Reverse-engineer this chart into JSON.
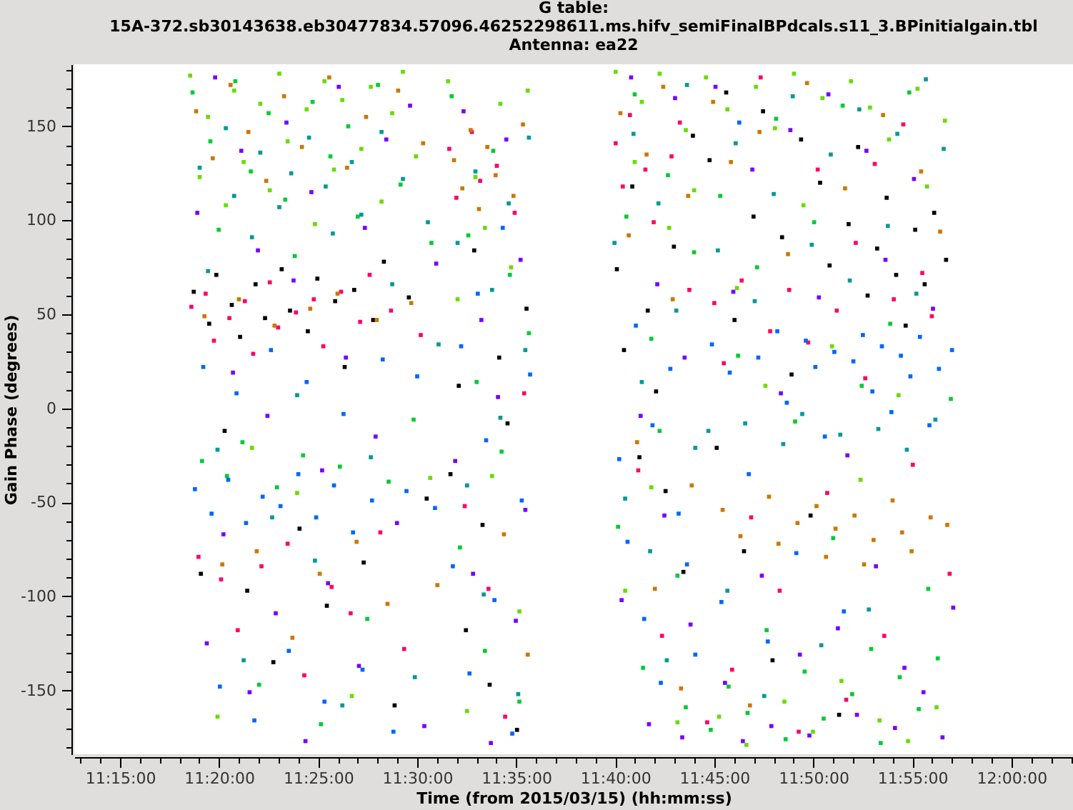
{
  "chart_data": {
    "type": "scatter",
    "title": "G table:\n15A-372.sb30143638.eb30477834.57096.46252298611.ms.hifv_semiFinalBPdcals.s11_3.BPinitialgain.tbl\nAntenna: ea22",
    "xlabel": "Time (from 2015/03/15) (hh:mm:ss)",
    "ylabel": "Gain Phase (degrees)",
    "xlim": [
      11.2115,
      12.0518
    ],
    "ylim": [
      -184,
      183
    ],
    "xticks": [
      {
        "value": 11.216667,
        "label": null
      },
      {
        "value": 11.233333,
        "label": null
      },
      {
        "value": 11.25,
        "label": "11:15:00"
      },
      {
        "value": 11.266667,
        "label": null
      },
      {
        "value": 11.283333,
        "label": null
      },
      {
        "value": 11.3,
        "label": null
      },
      {
        "value": 11.316667,
        "label": null
      },
      {
        "value": 11.333333,
        "label": "11:20:00"
      },
      {
        "value": 11.35,
        "label": null
      },
      {
        "value": 11.366667,
        "label": null
      },
      {
        "value": 11.383333,
        "label": null
      },
      {
        "value": 11.4,
        "label": null
      },
      {
        "value": 11.416667,
        "label": "11:25:00"
      },
      {
        "value": 11.433333,
        "label": null
      },
      {
        "value": 11.45,
        "label": null
      },
      {
        "value": 11.466667,
        "label": null
      },
      {
        "value": 11.483333,
        "label": null
      },
      {
        "value": 11.5,
        "label": "11:30:00"
      },
      {
        "value": 11.516667,
        "label": null
      },
      {
        "value": 11.533333,
        "label": null
      },
      {
        "value": 11.55,
        "label": null
      },
      {
        "value": 11.566667,
        "label": null
      },
      {
        "value": 11.583333,
        "label": "11:35:00"
      },
      {
        "value": 11.6,
        "label": null
      },
      {
        "value": 11.616667,
        "label": null
      },
      {
        "value": 11.633333,
        "label": null
      },
      {
        "value": 11.65,
        "label": null
      },
      {
        "value": 11.666667,
        "label": "11:40:00"
      },
      {
        "value": 11.683333,
        "label": null
      },
      {
        "value": 11.7,
        "label": null
      },
      {
        "value": 11.716667,
        "label": null
      },
      {
        "value": 11.733333,
        "label": null
      },
      {
        "value": 11.75,
        "label": "11:45:00"
      },
      {
        "value": 11.766667,
        "label": null
      },
      {
        "value": 11.783333,
        "label": null
      },
      {
        "value": 11.8,
        "label": null
      },
      {
        "value": 11.816667,
        "label": null
      },
      {
        "value": 11.833333,
        "label": "11:50:00"
      },
      {
        "value": 11.85,
        "label": null
      },
      {
        "value": 11.866667,
        "label": null
      },
      {
        "value": 11.883333,
        "label": null
      },
      {
        "value": 11.9,
        "label": null
      },
      {
        "value": 11.916667,
        "label": "11:55:00"
      },
      {
        "value": 11.933333,
        "label": null
      },
      {
        "value": 11.95,
        "label": null
      },
      {
        "value": 11.966667,
        "label": null
      },
      {
        "value": 11.983333,
        "label": null
      },
      {
        "value": 12,
        "label": "12:00:00"
      },
      {
        "value": 12.016667,
        "label": null
      },
      {
        "value": 12.033333,
        "label": null
      },
      {
        "value": 12.05,
        "label": null
      }
    ],
    "yticks": [
      {
        "value": -180,
        "label": null
      },
      {
        "value": -170,
        "label": null
      },
      {
        "value": -160,
        "label": null
      },
      -150,
      {
        "value": -140,
        "label": null
      },
      {
        "value": -130,
        "label": null
      },
      {
        "value": -120,
        "label": null
      },
      {
        "value": -110,
        "label": null
      },
      -100,
      {
        "value": -90,
        "label": null
      },
      {
        "value": -80,
        "label": null
      },
      {
        "value": -70,
        "label": null
      },
      {
        "value": -60,
        "label": null
      },
      -50,
      {
        "value": -40,
        "label": null
      },
      {
        "value": -30,
        "label": null
      },
      {
        "value": -20,
        "label": null
      },
      {
        "value": -10,
        "label": null
      },
      0,
      {
        "value": 10,
        "label": null
      },
      {
        "value": 20,
        "label": null
      },
      {
        "value": 30,
        "label": null
      },
      {
        "value": 40,
        "label": null
      },
      50,
      {
        "value": 60,
        "label": null
      },
      {
        "value": 70,
        "label": null
      },
      {
        "value": 80,
        "label": null
      },
      {
        "value": 90,
        "label": null
      },
      100,
      {
        "value": 110,
        "label": null
      },
      {
        "value": 120,
        "label": null
      },
      {
        "value": 130,
        "label": null
      },
      {
        "value": 140,
        "label": null
      },
      150,
      {
        "value": 160,
        "label": null
      },
      {
        "value": 170,
        "label": null
      },
      {
        "value": 180,
        "label": null
      }
    ],
    "marker": "square",
    "series": [
      {
        "color": "#000000",
        "x": [
          11.312,
          11.318,
          11.325,
          11.331,
          11.338,
          11.344,
          11.351,
          11.357,
          11.364,
          11.372,
          11.379,
          11.386,
          11.393,
          11.401,
          11.408,
          11.416,
          11.424,
          11.431,
          11.439,
          11.447,
          11.455,
          11.463,
          11.472,
          11.481,
          11.493,
          11.508,
          11.528,
          11.535,
          11.541,
          11.548,
          11.555,
          11.561,
          11.569,
          11.576,
          11.584,
          11.592,
          11.668,
          11.674,
          11.681,
          11.687,
          11.694,
          11.701,
          11.709,
          11.716,
          11.724,
          11.732,
          11.746,
          11.752,
          11.76,
          11.767,
          11.775,
          11.783,
          11.791,
          11.799,
          11.807,
          11.815,
          11.823,
          11.831,
          11.839,
          11.847,
          11.855,
          11.863,
          11.871,
          11.879,
          11.887,
          11.895,
          11.903,
          11.911,
          11.919,
          11.927,
          11.935,
          11.945
        ],
        "values": [
          62,
          -88,
          45,
          71,
          -12,
          55,
          38,
          -97,
          66,
          48,
          -135,
          74,
          52,
          -64,
          41,
          69,
          -105,
          57,
          22,
          63,
          -82,
          47,
          78,
          -158,
          59,
          -48,
          -35,
          12,
          -118,
          84,
          -62,
          -147,
          27,
          -8,
          -171,
          53,
          74,
          31,
          118,
          -26,
          52,
          9,
          -44,
          86,
          -87,
          145,
          132,
          -21,
          168,
          47,
          -76,
          102,
          158,
          -134,
          91,
          18,
          143,
          -57,
          120,
          76,
          -163,
          98,
          139,
          60,
          85,
          112,
          71,
          44,
          95,
          66,
          104,
          79
        ]
      },
      {
        "color": "#ff0066",
        "x": [
          11.31,
          11.316,
          11.322,
          11.329,
          11.335,
          11.342,
          11.349,
          11.355,
          11.362,
          11.369,
          11.376,
          11.383,
          11.391,
          11.398,
          11.405,
          11.413,
          11.421,
          11.428,
          11.436,
          11.444,
          11.452,
          11.46,
          11.469,
          11.478,
          11.489,
          11.503,
          11.527,
          11.533,
          11.54,
          11.546,
          11.553,
          11.56,
          11.567,
          11.574,
          11.582,
          11.59,
          11.667,
          11.673,
          11.679,
          11.686,
          11.692,
          11.699,
          11.706,
          11.714,
          11.721,
          11.729,
          11.744,
          11.75,
          11.758,
          11.765,
          11.773,
          11.781,
          11.789,
          11.797,
          11.805,
          11.813,
          11.821,
          11.829,
          11.837,
          11.845,
          11.853,
          11.861,
          11.869,
          11.877,
          11.885,
          11.893,
          11.901,
          11.909,
          11.917,
          11.925,
          11.933,
          11.948
        ],
        "values": [
          54,
          -79,
          61,
          36,
          -91,
          48,
          -118,
          57,
          29,
          -84,
          67,
          43,
          -72,
          51,
          -142,
          58,
          33,
          -95,
          62,
          -109,
          46,
          71,
          -66,
          52,
          -128,
          39,
          138,
          112,
          -52,
          147,
          121,
          -96,
          129,
          -164,
          104,
          8,
          141,
          118,
          156,
          -33,
          127,
          99,
          -121,
          134,
          152,
          63,
          -167,
          56,
          24,
          -139,
          68,
          -58,
          176,
          41,
          -97,
          63,
          -172,
          35,
          127,
          -45,
          52,
          -155,
          88,
          16,
          130,
          -121,
          58,
          151,
          -30,
          72,
          49,
          -88
        ]
      },
      {
        "color": "#00cc33",
        "x": [
          11.311,
          11.319,
          11.326,
          11.333,
          11.34,
          11.347,
          11.353,
          11.36,
          11.367,
          11.375,
          11.382,
          11.389,
          11.397,
          11.404,
          11.412,
          11.419,
          11.427,
          11.435,
          11.442,
          11.45,
          11.458,
          11.467,
          11.476,
          11.486,
          11.497,
          11.512,
          11.529,
          11.536,
          11.543,
          11.55,
          11.557,
          11.564,
          11.571,
          11.578,
          11.586,
          11.594,
          11.669,
          11.676,
          11.683,
          11.69,
          11.697,
          11.704,
          11.711,
          11.719,
          11.726,
          11.733,
          11.747,
          11.755,
          11.762,
          11.77,
          11.778,
          11.786,
          11.794,
          11.802,
          11.81,
          11.818,
          11.826,
          11.834,
          11.842,
          11.85,
          11.858,
          11.866,
          11.874,
          11.882,
          11.89,
          11.898,
          11.906,
          11.914,
          11.922,
          11.93,
          11.938,
          11.949
        ],
        "values": [
          168,
          -28,
          142,
          95,
          -36,
          174,
          -18,
          126,
          -147,
          157,
          -42,
          111,
          81,
          -25,
          163,
          -168,
          134,
          -31,
          150,
          102,
          -112,
          172,
          -39,
          119,
          -6,
          88,
          166,
          -74,
          92,
          14,
          -129,
          137,
          -23,
          71,
          -156,
          40,
          -63,
          102,
          167,
          -138,
          37,
          -12,
          124,
          -89,
          -159,
          83,
          -171,
          113,
          -148,
          28,
          -162,
          75,
          -118,
          154,
          -176,
          -7,
          -140,
          99,
          -165,
          -69,
          161,
          -152,
          12,
          -128,
          -178,
          45,
          -143,
          168,
          -160,
          -96,
          -133,
          5
        ]
      },
      {
        "color": "#0066ff",
        "x": [
          11.313,
          11.32,
          11.327,
          11.334,
          11.341,
          11.348,
          11.356,
          11.363,
          11.37,
          11.377,
          11.385,
          11.392,
          11.4,
          11.407,
          11.415,
          11.422,
          11.43,
          11.438,
          11.446,
          11.454,
          11.462,
          11.471,
          11.48,
          11.491,
          11.5,
          11.515,
          11.53,
          11.537,
          11.544,
          11.551,
          11.558,
          11.565,
          11.572,
          11.58,
          11.588,
          11.595,
          11.67,
          11.677,
          11.684,
          11.691,
          11.698,
          11.705,
          11.713,
          11.72,
          11.727,
          11.734,
          11.748,
          11.756,
          11.763,
          11.771,
          11.779,
          11.787,
          11.795,
          11.803,
          11.811,
          11.819,
          11.827,
          11.835,
          11.843,
          11.851,
          11.859,
          11.867,
          11.875,
          11.883,
          11.891,
          11.899,
          11.907,
          11.915,
          11.923,
          11.931,
          11.939,
          11.95
        ],
        "values": [
          -43,
          22,
          -56,
          -148,
          -38,
          8,
          -61,
          -166,
          -47,
          31,
          -52,
          -129,
          -35,
          14,
          -58,
          -156,
          -41,
          -3,
          -66,
          -139,
          -49,
          26,
          -172,
          -44,
          17,
          -53,
          -84,
          33,
          -141,
          61,
          -17,
          -102,
          96,
          -173,
          -49,
          18,
          -27,
          -71,
          44,
          -112,
          -9,
          -146,
          21,
          -56,
          -83,
          -131,
          34,
          -103,
          19,
          152,
          -35,
          27,
          -124,
          41,
          3,
          -77,
          36,
          22,
          -15,
          30,
          -108,
          25,
          39,
          9,
          33,
          -2,
          28,
          17,
          38,
          -9,
          21,
          31
        ]
      },
      {
        "color": "#cc7700",
        "x": [
          11.314,
          11.321,
          11.328,
          11.336,
          11.343,
          11.35,
          11.358,
          11.365,
          11.373,
          11.38,
          11.388,
          11.395,
          11.403,
          11.41,
          11.418,
          11.426,
          11.433,
          11.441,
          11.449,
          11.457,
          11.466,
          11.475,
          11.484,
          11.495,
          11.505,
          11.517,
          11.531,
          11.538,
          11.545,
          11.552,
          11.559,
          11.566,
          11.573,
          11.581,
          11.589,
          11.593,
          11.671,
          11.678,
          11.685,
          11.693,
          11.7,
          11.707,
          11.715,
          11.722,
          11.728,
          11.731,
          11.749,
          11.757,
          11.764,
          11.772,
          11.78,
          11.788,
          11.796,
          11.804,
          11.812,
          11.82,
          11.828,
          11.836,
          11.844,
          11.852,
          11.86,
          11.868,
          11.876,
          11.884,
          11.892,
          11.9,
          11.908,
          11.916,
          11.924,
          11.932,
          11.94,
          11.946
        ],
        "values": [
          158,
          49,
          133,
          -83,
          172,
          58,
          147,
          -76,
          121,
          44,
          166,
          -122,
          139,
          53,
          -88,
          176,
          61,
          128,
          -71,
          155,
          47,
          -104,
          169,
          56,
          141,
          -94,
          132,
          117,
          148,
          106,
          139,
          124,
          -67,
          113,
          151,
          -131,
          157,
          92,
          -18,
          135,
          -96,
          171,
          58,
          -149,
          113,
          -41,
          163,
          -54,
          131,
          -68,
          -158,
          147,
          -47,
          -72,
          82,
          -61,
          173,
          -52,
          -79,
          -64,
          117,
          -57,
          -83,
          -70,
          156,
          -49,
          -66,
          -76,
          126,
          -58,
          94,
          -62
        ]
      },
      {
        "color": "#7700ff",
        "x": [
          11.315,
          11.323,
          11.33,
          11.337,
          11.345,
          11.352,
          11.359,
          11.366,
          11.374,
          11.381,
          11.39,
          11.396,
          11.406,
          11.411,
          11.42,
          11.425,
          11.434,
          11.44,
          11.451,
          11.456,
          11.465,
          11.474,
          11.483,
          11.494,
          11.506,
          11.516,
          11.532,
          11.539,
          11.547,
          11.554,
          11.562,
          11.568,
          11.575,
          11.583,
          11.587,
          11.591,
          11.672,
          11.68,
          11.688,
          11.695,
          11.702,
          11.708,
          11.717,
          11.723,
          11.725,
          11.73,
          11.751,
          11.759,
          11.766,
          11.774,
          11.782,
          11.79,
          11.798,
          11.806,
          11.814,
          11.822,
          11.83,
          11.838,
          11.846,
          11.854,
          11.862,
          11.87,
          11.878,
          11.886,
          11.894,
          11.902,
          11.91,
          11.918,
          11.926,
          11.934,
          11.942,
          11.951
        ],
        "values": [
          104,
          -125,
          176,
          -67,
          19,
          137,
          -151,
          84,
          -4,
          -109,
          152,
          68,
          -177,
          115,
          -33,
          -93,
          171,
          27,
          -137,
          96,
          -15,
          143,
          -61,
          161,
          -169,
          77,
          -28,
          158,
          -88,
          47,
          -178,
          6,
          143,
          -113,
          79,
          -54,
          -102,
          176,
          -4,
          -168,
          66,
          -57,
          165,
          -175,
          27,
          -115,
          171,
          -146,
          62,
          -177,
          127,
          -89,
          -169,
          8,
          148,
          -131,
          -174,
          59,
          167,
          -117,
          -25,
          -163,
          137,
          -84,
          79,
          -170,
          -138,
          122,
          -151,
          53,
          -175,
          -106
        ]
      },
      {
        "color": "#009999",
        "x": [
          11.317,
          11.324,
          11.332,
          11.339,
          11.346,
          11.354,
          11.361,
          11.368,
          11.378,
          11.384,
          11.394,
          11.399,
          11.409,
          11.414,
          11.423,
          11.429,
          11.437,
          11.445,
          11.453,
          11.461,
          11.47,
          11.479,
          11.488,
          11.498,
          11.509,
          11.518,
          11.534,
          11.542,
          11.549,
          11.556,
          11.563,
          11.57,
          11.577,
          11.585,
          11.591,
          11.594,
          11.666,
          11.675,
          11.682,
          11.689,
          11.696,
          11.703,
          11.71,
          11.718,
          11.727,
          11.734,
          11.745,
          11.753,
          11.761,
          11.768,
          11.776,
          11.784,
          11.792,
          11.8,
          11.808,
          11.816,
          11.824,
          11.832,
          11.84,
          11.848,
          11.856,
          11.864,
          11.872,
          11.88,
          11.888,
          11.896,
          11.904,
          11.912,
          11.92,
          11.928,
          11.936,
          11.943
        ],
        "values": [
          128,
          73,
          -22,
          149,
          113,
          -134,
          91,
          136,
          -58,
          107,
          125,
          7,
          144,
          -81,
          118,
          93,
          -158,
          131,
          103,
          -26,
          147,
          66,
          122,
          -143,
          99,
          34,
          88,
          -41,
          126,
          -99,
          63,
          -5,
          109,
          -152,
          31,
          144,
          88,
          -48,
          146,
          14,
          -76,
          109,
          -134,
          52,
          172,
          -21,
          -12,
          84,
          -97,
          141,
          -8,
          57,
          -153,
          114,
          -19,
          166,
          -3,
          87,
          -126,
          135,
          -14,
          68,
          159,
          -107,
          -11,
          97,
          146,
          -22,
          61,
          175,
          -6,
          138
        ]
      },
      {
        "color": "#66dd00",
        "x": [
          11.309,
          11.317,
          11.324,
          11.332,
          11.339,
          11.346,
          11.354,
          11.361,
          11.368,
          11.376,
          11.384,
          11.391,
          11.399,
          11.407,
          11.414,
          11.422,
          11.43,
          11.437,
          11.445,
          11.453,
          11.461,
          11.47,
          11.479,
          11.488,
          11.499,
          11.511,
          11.526,
          11.534,
          11.542,
          11.549,
          11.557,
          11.563,
          11.57,
          11.579,
          11.586,
          11.593,
          11.667,
          11.675,
          11.683,
          11.689,
          11.697,
          11.704,
          11.712,
          11.719,
          11.726,
          11.733,
          11.743,
          11.754,
          11.761,
          11.769,
          11.777,
          11.785,
          11.793,
          11.801,
          11.809,
          11.817,
          11.825,
          11.833,
          11.841,
          11.849,
          11.857,
          11.865,
          11.873,
          11.881,
          11.889,
          11.897,
          11.905,
          11.913,
          11.921,
          11.929,
          11.937,
          11.944
        ],
        "values": [
          177,
          123,
          155,
          -164,
          108,
          169,
          131,
          -21,
          162,
          116,
          178,
          142,
          -45,
          159,
          98,
          174,
          127,
          164,
          -153,
          138,
          171,
          110,
          157,
          179,
          134,
          -37,
          174,
          58,
          -161,
          123,
          96,
          -36,
          162,
          75,
          -108,
          169,
          179,
          -97,
          131,
          163,
          -42,
          178,
          96,
          -167,
          148,
          116,
          176,
          -164,
          159,
          64,
          -179,
          171,
          12,
          149,
          -156,
          178,
          108,
          -172,
          165,
          33,
          -145,
          174,
          -38,
          160,
          -166,
          143,
          7,
          -177,
          170,
          118,
          -159,
          153
        ]
      }
    ]
  }
}
